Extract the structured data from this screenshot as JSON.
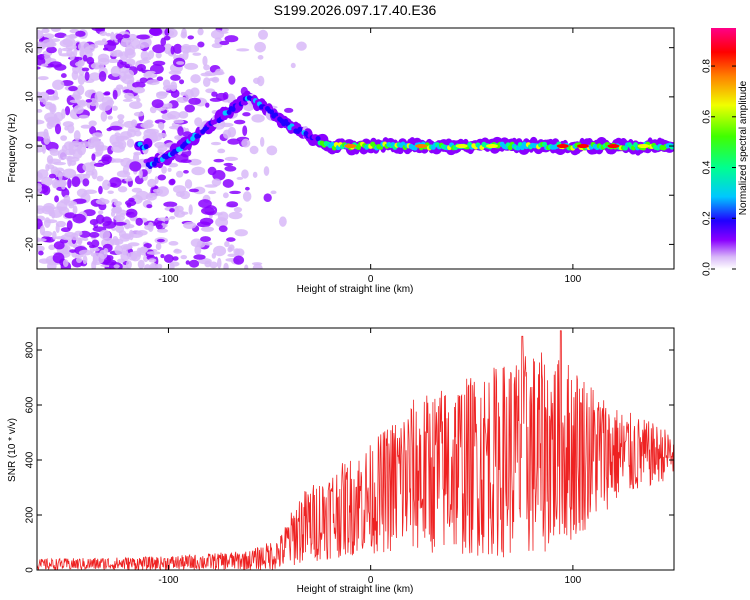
{
  "title": "S199.2026.097.17.40.E36",
  "chart_data": [
    {
      "type": "heatmap",
      "xlabel": "Height of straight line (km)",
      "ylabel": "Frequency (Hz)",
      "xlim": [
        -165,
        150
      ],
      "ylim": [
        -25,
        24
      ],
      "xticks": [
        -100,
        0,
        100
      ],
      "yticks": [
        -20,
        -10,
        0,
        10,
        20
      ],
      "colorbar": {
        "label": "Normalized spectral amplitude",
        "range": [
          0,
          0.95
        ],
        "ticks": [
          "0.0",
          "0.2",
          "0.4",
          "0.6",
          "0.8"
        ],
        "colormap": [
          "#ffffff",
          "#d8b8f8",
          "#8a00ff",
          "#2000ff",
          "#00c8ff",
          "#00ff90",
          "#40ff00",
          "#f0ff00",
          "#ff8000",
          "#ff0000",
          "#ff0088"
        ]
      },
      "ridge": [
        {
          "x": -110,
          "f": -4
        },
        {
          "x": -100,
          "f": -2
        },
        {
          "x": -90,
          "f": 1
        },
        {
          "x": -80,
          "f": 4
        },
        {
          "x": -70,
          "f": 7
        },
        {
          "x": -60,
          "f": 10
        },
        {
          "x": -50,
          "f": 7
        },
        {
          "x": -40,
          "f": 4
        },
        {
          "x": -30,
          "f": 2
        },
        {
          "x": -20,
          "f": 0
        },
        {
          "x": 0,
          "f": 0
        },
        {
          "x": 50,
          "f": 0
        },
        {
          "x": 100,
          "f": 0
        },
        {
          "x": 150,
          "f": 0
        }
      ]
    },
    {
      "type": "line",
      "xlabel": "Height of straight line (km)",
      "ylabel": "SNR (10 * v/v)",
      "xlim": [
        -165,
        150
      ],
      "ylim": [
        0,
        880
      ],
      "xticks": [
        -100,
        0,
        100
      ],
      "yticks": [
        0,
        200,
        400,
        600,
        800
      ],
      "color": "#ee2222",
      "envelope": [
        {
          "x": -165,
          "base": 20,
          "amp": 20
        },
        {
          "x": -100,
          "base": 25,
          "amp": 25
        },
        {
          "x": -60,
          "base": 35,
          "amp": 35
        },
        {
          "x": -45,
          "base": 60,
          "amp": 60
        },
        {
          "x": -35,
          "base": 150,
          "amp": 130
        },
        {
          "x": -20,
          "base": 200,
          "amp": 160
        },
        {
          "x": 0,
          "base": 260,
          "amp": 200
        },
        {
          "x": 20,
          "base": 340,
          "amp": 280
        },
        {
          "x": 50,
          "base": 380,
          "amp": 330
        },
        {
          "x": 80,
          "base": 420,
          "amp": 380
        },
        {
          "x": 100,
          "base": 430,
          "amp": 330
        },
        {
          "x": 120,
          "base": 420,
          "amp": 180
        },
        {
          "x": 150,
          "base": 420,
          "amp": 80
        }
      ]
    }
  ]
}
